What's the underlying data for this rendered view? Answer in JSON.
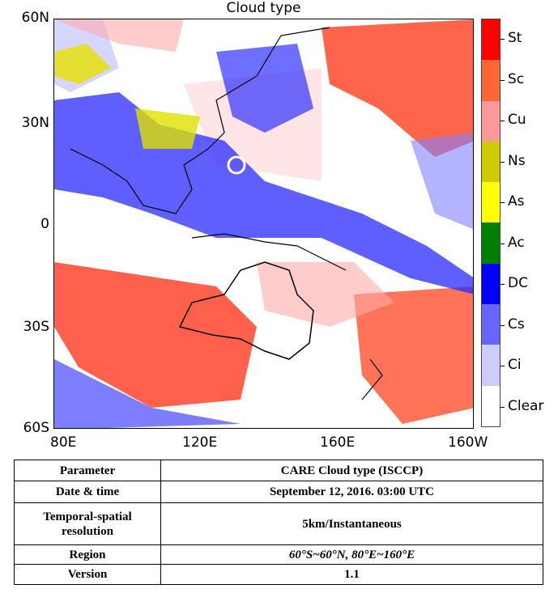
{
  "title": "Cloud type",
  "lat_ticks": [
    "60N",
    "30N",
    "0",
    "30S",
    "60S"
  ],
  "lon_ticks": [
    "80E",
    "120E",
    "160E",
    "160W"
  ],
  "legend": [
    {
      "label": "St",
      "color": "#ff0000"
    },
    {
      "label": "Sc",
      "color": "#ff6633"
    },
    {
      "label": "Cu",
      "color": "#ff9999"
    },
    {
      "label": "Ns",
      "color": "#cccc00"
    },
    {
      "label": "As",
      "color": "#ffff00"
    },
    {
      "label": "Ac",
      "color": "#008000"
    },
    {
      "label": "DC",
      "color": "#0000ff"
    },
    {
      "label": "Cs",
      "color": "#6666ff"
    },
    {
      "label": "Ci",
      "color": "#ccccff"
    },
    {
      "label": "Clear",
      "color": "#ffffff"
    }
  ],
  "table": [
    {
      "key": "Parameter",
      "value": "CARE Cloud type (ISCCP)"
    },
    {
      "key": "Date & time",
      "value": "September 12, 2016. 03:00 UTC"
    },
    {
      "key": "Temporal-spatial resolution",
      "value": "5km/Instantaneous"
    },
    {
      "key": "Region",
      "value": "60°S~60°N, 80°E~160°E"
    },
    {
      "key": "Version",
      "value": "1.1"
    }
  ]
}
